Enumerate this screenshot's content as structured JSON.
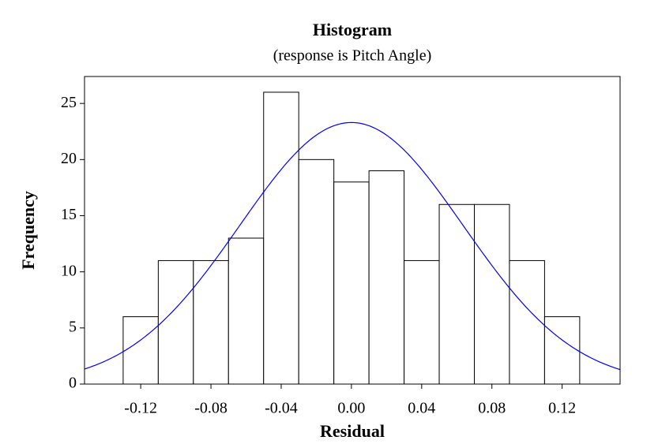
{
  "chart_data": {
    "type": "histogram",
    "title": "Histogram",
    "subtitle": "(response is Pitch Angle)",
    "xlabel": "Residual",
    "ylabel": "Frequency",
    "bins": [
      -0.13,
      -0.11,
      -0.09,
      -0.07,
      -0.05,
      -0.03,
      -0.01,
      0.01,
      0.03,
      0.05,
      0.07,
      0.09,
      0.11,
      0.13
    ],
    "counts": [
      6,
      11,
      11,
      13,
      26,
      20,
      18,
      19,
      11,
      16,
      16,
      11,
      6
    ],
    "color": "#ffffff",
    "fit": {
      "mean": 0.0,
      "stdev": 0.0636,
      "peak": 23.3,
      "color": "#0000ff"
    },
    "xlim": [
      -0.152,
      0.153
    ],
    "ylim": [
      0,
      27.4
    ],
    "xticks": [
      -0.12,
      -0.08,
      -0.04,
      {
        "value": 0,
        "label": "0.00"
      },
      0.04,
      0.08,
      0.12
    ],
    "yticks": [
      0,
      5,
      10,
      15,
      20,
      25
    ]
  }
}
